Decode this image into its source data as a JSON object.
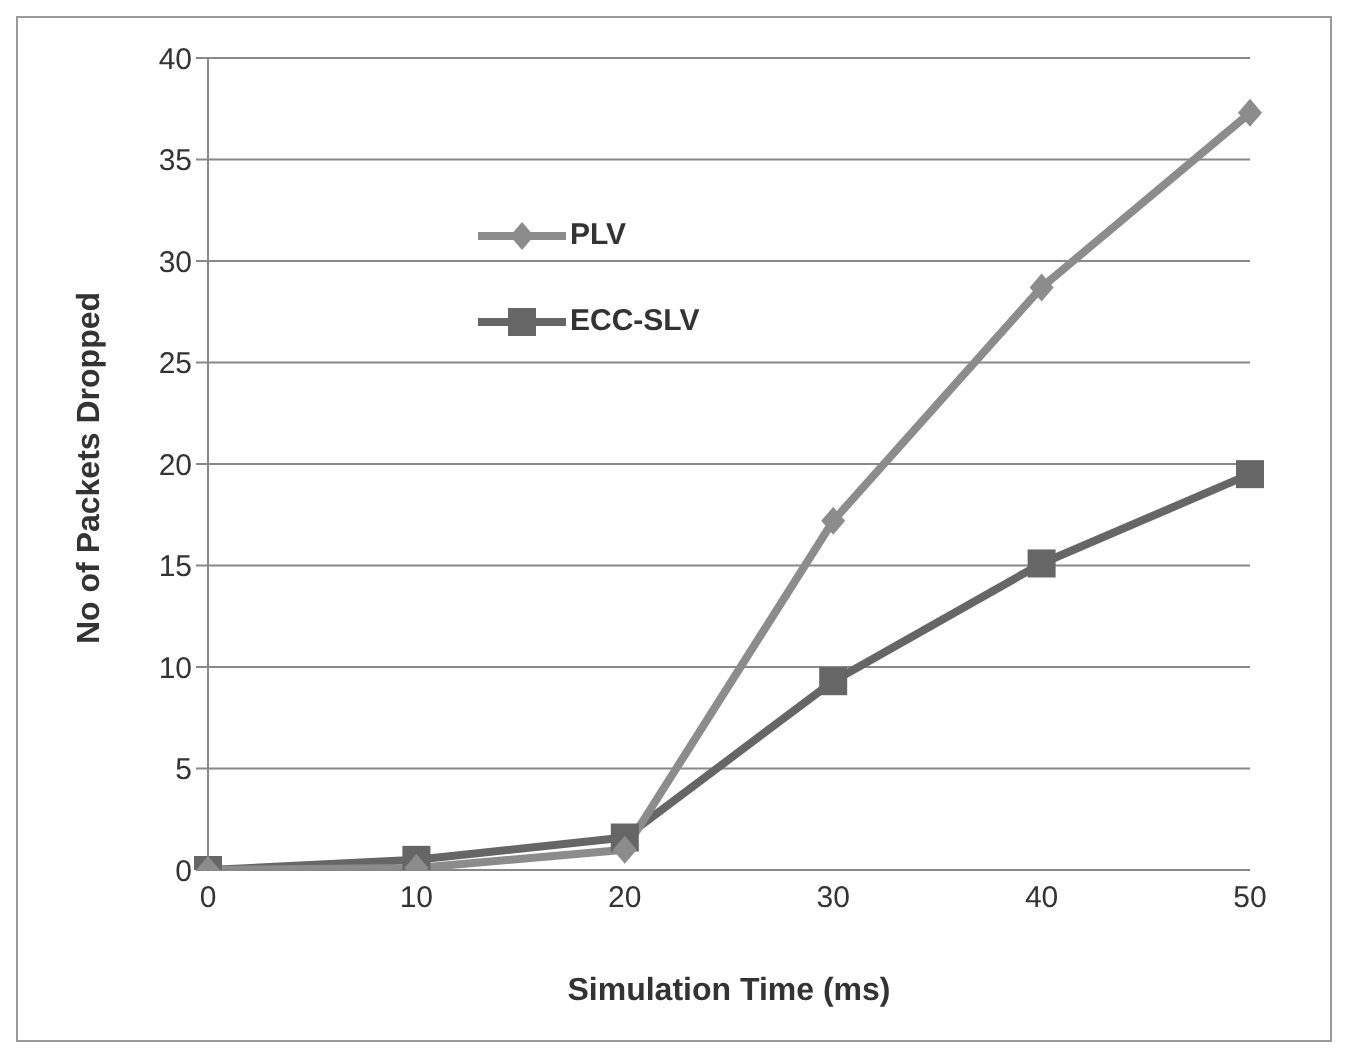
{
  "chart_data": {
    "type": "line",
    "xlabel": "Simulation Time (ms)",
    "ylabel": "No of Packets Dropped",
    "categories": [
      "0",
      "10",
      "20",
      "30",
      "40",
      "50"
    ],
    "series": [
      {
        "name": "PLV",
        "color": "#8c8c8c",
        "marker": "diamond",
        "values": [
          0,
          0.1,
          1,
          17.2,
          28.7,
          37.3
        ]
      },
      {
        "name": "ECC-SLV",
        "color": "#666666",
        "marker": "square",
        "values": [
          0,
          0.5,
          1.6,
          9.3,
          15.1,
          19.5
        ]
      }
    ],
    "ylim": [
      0,
      40
    ],
    "yticks": [
      0,
      5,
      10,
      15,
      20,
      25,
      30,
      35,
      40
    ],
    "grid": "y",
    "legend": "top left"
  }
}
